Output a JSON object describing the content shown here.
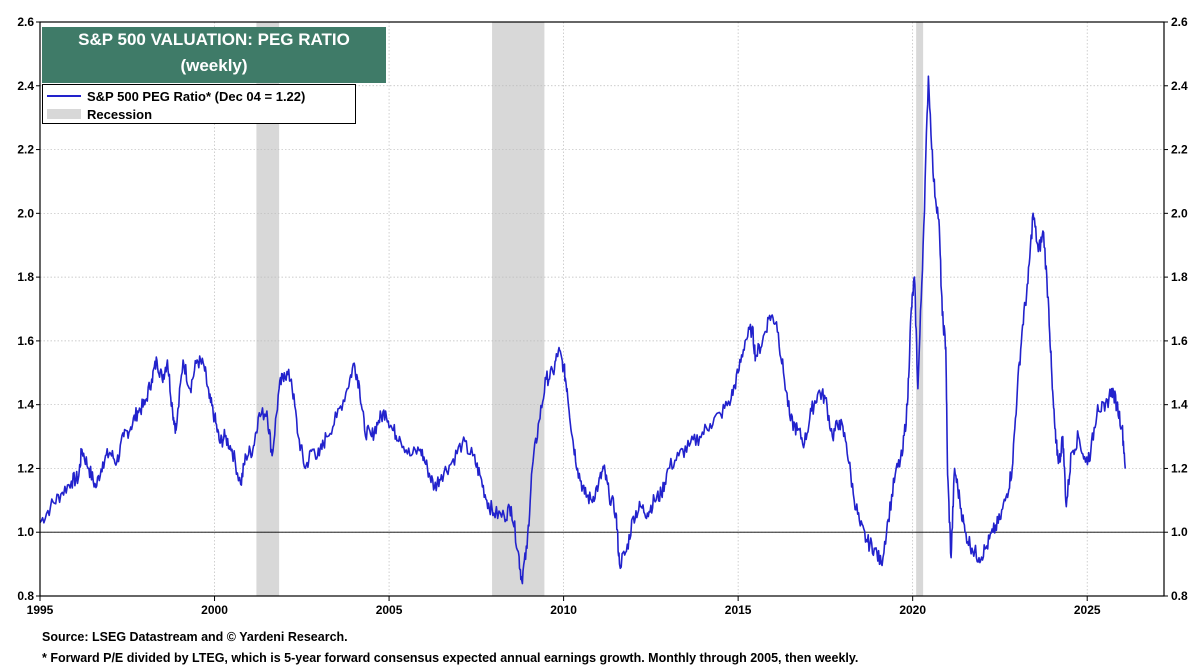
{
  "chart_data": {
    "type": "line",
    "title": "S&P 500 VALUATION: PEG RATIO",
    "subtitle": "(weekly)",
    "xlim": [
      1995,
      2027.2
    ],
    "ylim": [
      0.8,
      2.6
    ],
    "y_ticks": [
      0.8,
      1.0,
      1.2,
      1.4,
      1.6,
      1.8,
      2.0,
      2.2,
      2.4,
      2.6
    ],
    "y_tick_labels": [
      "0.8",
      "1.0",
      "1.2",
      "1.4",
      "1.6",
      "1.8",
      "2.0",
      "2.2",
      "2.4",
      "2.6"
    ],
    "x_ticks": [
      1995,
      2000,
      2005,
      2010,
      2015,
      2020,
      2025
    ],
    "x_tick_labels": [
      "1995",
      "2000",
      "2005",
      "2010",
      "2015",
      "2020",
      "2025"
    ],
    "reference_line": 1.0,
    "grid": true,
    "legend_placement": "top-left",
    "colors": {
      "series": "#2222cc",
      "recession": "#d8d8d8",
      "title_bg": "#3f7b68"
    },
    "recessions": [
      [
        2001.2,
        2001.85
      ],
      [
        2007.95,
        2009.45
      ],
      [
        2020.1,
        2020.3
      ]
    ],
    "series": [
      {
        "name": "S&P 500 PEG Ratio* (Dec 04 = 1.22)",
        "points": [
          [
            1995.0,
            1.03
          ],
          [
            1995.3,
            1.08
          ],
          [
            1995.6,
            1.12
          ],
          [
            1995.9,
            1.16
          ],
          [
            1996.1,
            1.17
          ],
          [
            1996.2,
            1.26
          ],
          [
            1996.4,
            1.2
          ],
          [
            1996.6,
            1.14
          ],
          [
            1996.8,
            1.22
          ],
          [
            1997.0,
            1.25
          ],
          [
            1997.2,
            1.22
          ],
          [
            1997.4,
            1.3
          ],
          [
            1997.6,
            1.33
          ],
          [
            1997.8,
            1.38
          ],
          [
            1998.0,
            1.4
          ],
          [
            1998.2,
            1.48
          ],
          [
            1998.35,
            1.54
          ],
          [
            1998.5,
            1.48
          ],
          [
            1998.65,
            1.54
          ],
          [
            1998.8,
            1.38
          ],
          [
            1998.9,
            1.32
          ],
          [
            1999.1,
            1.54
          ],
          [
            1999.3,
            1.45
          ],
          [
            1999.5,
            1.54
          ],
          [
            1999.7,
            1.52
          ],
          [
            1999.85,
            1.42
          ],
          [
            2000.0,
            1.36
          ],
          [
            2000.15,
            1.28
          ],
          [
            2000.3,
            1.3
          ],
          [
            2000.5,
            1.26
          ],
          [
            2000.75,
            1.15
          ],
          [
            2000.9,
            1.24
          ],
          [
            2001.1,
            1.26
          ],
          [
            2001.25,
            1.36
          ],
          [
            2001.5,
            1.38
          ],
          [
            2001.65,
            1.24
          ],
          [
            2001.85,
            1.45
          ],
          [
            2002.0,
            1.5
          ],
          [
            2002.2,
            1.48
          ],
          [
            2002.4,
            1.3
          ],
          [
            2002.6,
            1.2
          ],
          [
            2002.8,
            1.26
          ],
          [
            2003.0,
            1.24
          ],
          [
            2003.2,
            1.3
          ],
          [
            2003.5,
            1.36
          ],
          [
            2003.8,
            1.45
          ],
          [
            2004.0,
            1.53
          ],
          [
            2004.15,
            1.46
          ],
          [
            2004.3,
            1.32
          ],
          [
            2004.5,
            1.3
          ],
          [
            2004.7,
            1.35
          ],
          [
            2004.9,
            1.38
          ],
          [
            2005.1,
            1.32
          ],
          [
            2005.3,
            1.3
          ],
          [
            2005.6,
            1.24
          ],
          [
            2005.9,
            1.26
          ],
          [
            2006.1,
            1.2
          ],
          [
            2006.3,
            1.14
          ],
          [
            2006.5,
            1.18
          ],
          [
            2006.8,
            1.22
          ],
          [
            2007.1,
            1.28
          ],
          [
            2007.4,
            1.24
          ],
          [
            2007.6,
            1.18
          ],
          [
            2007.8,
            1.1
          ],
          [
            2008.0,
            1.06
          ],
          [
            2008.3,
            1.05
          ],
          [
            2008.5,
            1.08
          ],
          [
            2008.7,
            0.94
          ],
          [
            2008.8,
            0.85
          ],
          [
            2008.95,
            0.95
          ],
          [
            2009.1,
            1.2
          ],
          [
            2009.3,
            1.35
          ],
          [
            2009.5,
            1.48
          ],
          [
            2009.7,
            1.5
          ],
          [
            2009.85,
            1.57
          ],
          [
            2010.0,
            1.52
          ],
          [
            2010.1,
            1.45
          ],
          [
            2010.25,
            1.3
          ],
          [
            2010.4,
            1.2
          ],
          [
            2010.6,
            1.12
          ],
          [
            2010.8,
            1.1
          ],
          [
            2011.0,
            1.15
          ],
          [
            2011.15,
            1.2
          ],
          [
            2011.3,
            1.12
          ],
          [
            2011.5,
            1.06
          ],
          [
            2011.6,
            0.9
          ],
          [
            2011.8,
            0.94
          ],
          [
            2012.0,
            1.05
          ],
          [
            2012.2,
            1.08
          ],
          [
            2012.4,
            1.06
          ],
          [
            2012.6,
            1.1
          ],
          [
            2012.8,
            1.12
          ],
          [
            2013.0,
            1.2
          ],
          [
            2013.3,
            1.24
          ],
          [
            2013.6,
            1.27
          ],
          [
            2013.9,
            1.3
          ],
          [
            2014.2,
            1.34
          ],
          [
            2014.5,
            1.37
          ],
          [
            2014.8,
            1.42
          ],
          [
            2015.0,
            1.5
          ],
          [
            2015.2,
            1.6
          ],
          [
            2015.4,
            1.64
          ],
          [
            2015.5,
            1.55
          ],
          [
            2015.7,
            1.6
          ],
          [
            2015.9,
            1.68
          ],
          [
            2016.1,
            1.66
          ],
          [
            2016.3,
            1.5
          ],
          [
            2016.5,
            1.35
          ],
          [
            2016.7,
            1.32
          ],
          [
            2016.9,
            1.28
          ],
          [
            2017.1,
            1.38
          ],
          [
            2017.3,
            1.44
          ],
          [
            2017.5,
            1.42
          ],
          [
            2017.7,
            1.3
          ],
          [
            2017.9,
            1.35
          ],
          [
            2018.1,
            1.28
          ],
          [
            2018.3,
            1.12
          ],
          [
            2018.5,
            1.02
          ],
          [
            2018.7,
            0.97
          ],
          [
            2018.9,
            0.95
          ],
          [
            2019.1,
            0.9
          ],
          [
            2019.3,
            1.04
          ],
          [
            2019.5,
            1.18
          ],
          [
            2019.7,
            1.24
          ],
          [
            2019.85,
            1.4
          ],
          [
            2019.95,
            1.68
          ],
          [
            2020.05,
            1.8
          ],
          [
            2020.15,
            1.45
          ],
          [
            2020.3,
            1.9
          ],
          [
            2020.45,
            2.43
          ],
          [
            2020.6,
            2.1
          ],
          [
            2020.75,
            1.98
          ],
          [
            2020.85,
            1.68
          ],
          [
            2020.95,
            1.58
          ],
          [
            2021.0,
            1.18
          ],
          [
            2021.1,
            0.92
          ],
          [
            2021.2,
            1.2
          ],
          [
            2021.35,
            1.1
          ],
          [
            2021.5,
            1.0
          ],
          [
            2021.7,
            0.95
          ],
          [
            2021.9,
            0.92
          ],
          [
            2022.1,
            0.95
          ],
          [
            2022.3,
            1.0
          ],
          [
            2022.5,
            1.04
          ],
          [
            2022.7,
            1.12
          ],
          [
            2022.85,
            1.2
          ],
          [
            2023.0,
            1.45
          ],
          [
            2023.15,
            1.65
          ],
          [
            2023.3,
            1.78
          ],
          [
            2023.45,
            2.0
          ],
          [
            2023.6,
            1.88
          ],
          [
            2023.75,
            1.94
          ],
          [
            2023.9,
            1.7
          ],
          [
            2024.0,
            1.45
          ],
          [
            2024.1,
            1.28
          ],
          [
            2024.2,
            1.22
          ],
          [
            2024.3,
            1.3
          ],
          [
            2024.4,
            1.08
          ],
          [
            2024.55,
            1.25
          ],
          [
            2024.75,
            1.3
          ],
          [
            2024.95,
            1.22
          ],
          [
            2025.1,
            1.25
          ],
          [
            2025.3,
            1.4
          ],
          [
            2025.5,
            1.38
          ],
          [
            2025.7,
            1.45
          ],
          [
            2025.85,
            1.4
          ],
          [
            2026.0,
            1.33
          ],
          [
            2026.1,
            1.2
          ]
        ]
      }
    ]
  },
  "legend": {
    "series_label": "S&P 500 PEG Ratio* (Dec 04 = 1.22)",
    "recession_label": "Recession"
  },
  "footer": {
    "source": "Source: LSEG Datastream and © Yardeni Research.",
    "note": "* Forward P/E divided by LTEG, which is 5-year forward consensus expected annual earnings growth. Monthly through 2005, then weekly."
  }
}
